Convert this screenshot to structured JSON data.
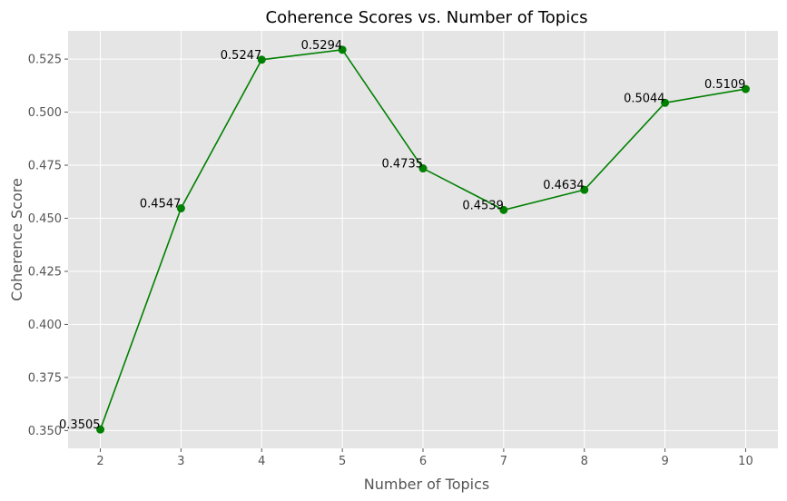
{
  "chart_data": {
    "type": "line",
    "title": "Coherence Scores vs. Number of Topics",
    "xlabel": "Number of Topics",
    "ylabel": "Coherence Score",
    "x": [
      2,
      3,
      4,
      5,
      6,
      7,
      8,
      9,
      10
    ],
    "y": [
      0.3505,
      0.4547,
      0.5247,
      0.5294,
      0.4735,
      0.4539,
      0.4634,
      0.5044,
      0.5109
    ],
    "point_labels": [
      "0.3505",
      "0.4547",
      "0.5247",
      "0.5294",
      "0.4735",
      "0.4539",
      "0.4634",
      "0.5044",
      "0.5109"
    ],
    "x_ticks": [
      "2",
      "3",
      "4",
      "5",
      "6",
      "7",
      "8",
      "9",
      "10"
    ],
    "y_ticks": [
      "0.350",
      "0.375",
      "0.400",
      "0.425",
      "0.450",
      "0.475",
      "0.500",
      "0.525"
    ],
    "xlim": [
      1.6,
      10.4
    ],
    "ylim": [
      0.3416,
      0.5383
    ],
    "grid": true,
    "marker": "circle",
    "line_color": "#008000",
    "plot_background": "#e5e5e5",
    "grid_color": "#ffffff"
  }
}
